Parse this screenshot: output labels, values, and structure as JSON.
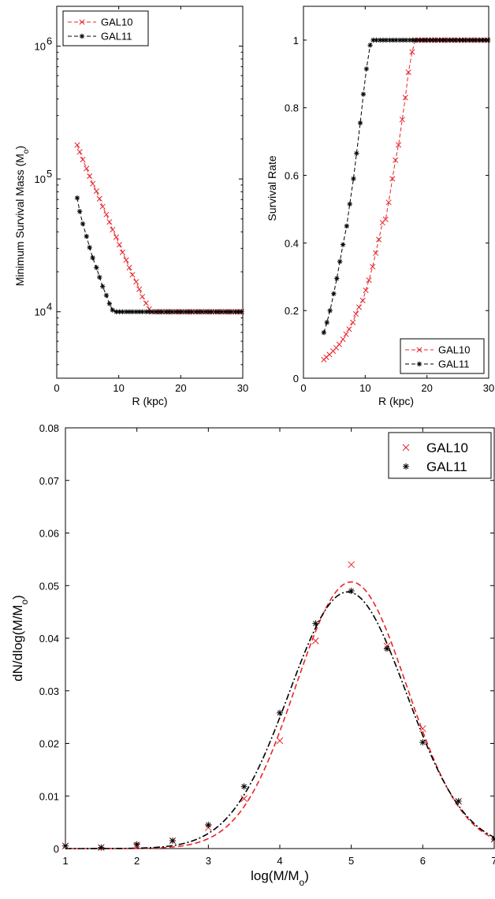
{
  "colors": {
    "red": "#e8242a",
    "black": "#000000"
  },
  "chart_data": [
    {
      "type": "line",
      "xlabel": "R (kpc)",
      "ylabel": "Minimum Survival Mass (M",
      "ylabel_sub": "o",
      "ylabel_close": ")",
      "xlim": [
        0,
        30
      ],
      "ylim_log10": [
        3.5,
        6.3
      ],
      "yscale": "log",
      "xticks": [
        0,
        10,
        20,
        30
      ],
      "xtick_labels": [
        "0",
        "10",
        "20",
        "30"
      ],
      "yticks_log10": [
        4,
        5,
        6
      ],
      "ytick_bases": [
        "10",
        "10",
        "10"
      ],
      "ytick_exps": [
        "4",
        "5",
        "6"
      ],
      "legend": {
        "position": "top-left",
        "entries": [
          "GAL10",
          "GAL11"
        ]
      },
      "series": [
        {
          "name": "GAL10",
          "color": "#e8242a",
          "marker": "x",
          "x": [
            3.3,
            3.7,
            4.2,
            4.8,
            5.3,
            5.8,
            6.4,
            6.9,
            7.4,
            8.0,
            8.5,
            9.0,
            9.6,
            10.1,
            10.6,
            11.2,
            11.7,
            12.2,
            12.8,
            13.3,
            13.8,
            14.4,
            14.9,
            15.4,
            16.0,
            16.5,
            17.0,
            17.6,
            18.1,
            18.6,
            19.2,
            19.7,
            20.2,
            20.8,
            21.3,
            21.8,
            22.4,
            22.9,
            23.4,
            24.0,
            24.5,
            25.0,
            25.6,
            26.1,
            26.6,
            27.2,
            27.7,
            28.2,
            28.8,
            29.3,
            29.8
          ],
          "y": [
            180000,
            160000,
            140000,
            120000,
            105000,
            92000,
            81000,
            71000,
            62000,
            54000,
            47500,
            41500,
            36500,
            32000,
            28000,
            24500,
            21500,
            19000,
            16800,
            14800,
            13000,
            11600,
            10500,
            10000,
            10000,
            10000,
            10000,
            10000,
            10000,
            10000,
            10000,
            10000,
            10000,
            10000,
            10000,
            10000,
            10000,
            10000,
            10000,
            10000,
            10000,
            10000,
            10000,
            10000,
            10000,
            10000,
            10000,
            10000,
            10000,
            10000,
            10000
          ]
        },
        {
          "name": "GAL11",
          "color": "#000000",
          "marker": "*",
          "x": [
            3.3,
            3.7,
            4.2,
            4.8,
            5.3,
            5.8,
            6.4,
            6.9,
            7.4,
            8.0,
            8.5,
            9.0,
            9.6,
            10.1,
            10.6,
            11.2,
            11.7,
            12.2,
            12.8,
            13.3,
            13.8,
            14.4,
            14.9,
            15.4,
            16.0,
            16.5,
            17.0,
            17.6,
            18.1,
            18.6,
            19.2,
            19.7,
            20.2,
            20.8,
            21.3,
            21.8,
            22.4,
            22.9,
            23.4,
            24.0,
            24.5,
            25.0,
            25.6,
            26.1,
            26.6,
            27.2,
            27.7,
            28.2,
            28.8,
            29.3,
            29.8
          ],
          "y": [
            72000,
            57000,
            46000,
            37000,
            30500,
            25500,
            21500,
            18200,
            15500,
            13300,
            11500,
            10300,
            10000,
            10000,
            10000,
            10000,
            10000,
            10000,
            10000,
            10000,
            10000,
            10000,
            10000,
            10000,
            10000,
            10000,
            10000,
            10000,
            10000,
            10000,
            10000,
            10000,
            10000,
            10000,
            10000,
            10000,
            10000,
            10000,
            10000,
            10000,
            10000,
            10000,
            10000,
            10000,
            10000,
            10000,
            10000,
            10000,
            10000,
            10000,
            10000
          ]
        }
      ]
    },
    {
      "type": "line",
      "xlabel": "R (kpc)",
      "ylabel": "Survival Rate",
      "xlim": [
        0,
        30
      ],
      "ylim": [
        0,
        1.1
      ],
      "xticks": [
        0,
        10,
        20,
        30
      ],
      "xtick_labels": [
        "0",
        "10",
        "20",
        "30"
      ],
      "yticks": [
        0,
        0.2,
        0.4,
        0.6,
        0.8,
        1
      ],
      "ytick_labels": [
        "0",
        "0.2",
        "0.4",
        "0.6",
        "0.8",
        "1"
      ],
      "legend": {
        "position": "bottom-right",
        "entries": [
          "GAL10",
          "GAL11"
        ]
      },
      "series": [
        {
          "name": "GAL10",
          "color": "#e8242a",
          "marker": "x",
          "x": [
            3.3,
            3.7,
            4.2,
            4.8,
            5.3,
            5.8,
            6.4,
            6.9,
            7.4,
            8.0,
            8.5,
            9.0,
            9.6,
            10.1,
            10.6,
            11.2,
            11.7,
            12.2,
            12.8,
            13.3,
            13.8,
            14.4,
            14.9,
            15.4,
            16.0,
            16.5,
            17.0,
            17.6,
            18.1,
            18.6,
            19.2,
            19.7,
            20.2,
            20.8,
            21.3,
            21.8,
            22.4,
            22.9,
            23.4,
            24.0,
            24.5,
            25.0,
            25.6,
            26.1,
            26.6,
            27.2,
            27.7,
            28.2,
            28.8,
            29.3,
            29.8
          ],
          "y": [
            0.055,
            0.062,
            0.07,
            0.08,
            0.09,
            0.1,
            0.115,
            0.13,
            0.145,
            0.165,
            0.19,
            0.21,
            0.23,
            0.26,
            0.29,
            0.33,
            0.37,
            0.41,
            0.46,
            0.47,
            0.52,
            0.59,
            0.645,
            0.69,
            0.765,
            0.83,
            0.905,
            0.965,
            1.0,
            1.0,
            1.0,
            1.0,
            1.0,
            1.0,
            1.0,
            1.0,
            1.0,
            1.0,
            1.0,
            1.0,
            1.0,
            1.0,
            1.0,
            1.0,
            1.0,
            1.0,
            1.0,
            1.0,
            1.0,
            1.0,
            1.0
          ]
        },
        {
          "name": "GAL11",
          "color": "#000000",
          "marker": "*",
          "x": [
            3.3,
            3.8,
            4.3,
            4.9,
            5.4,
            5.9,
            6.4,
            7.0,
            7.5,
            8.1,
            8.6,
            9.2,
            9.7,
            10.2,
            10.8,
            11.3,
            11.8,
            12.4,
            12.9,
            13.4,
            14.0,
            14.5,
            15.0,
            15.6,
            16.1,
            16.6,
            17.2,
            17.7,
            18.2,
            18.8,
            19.3,
            19.8,
            20.4,
            20.9,
            21.4,
            22.0,
            22.5,
            23.0,
            23.6,
            24.1,
            24.6,
            25.2,
            25.7,
            26.2,
            26.8,
            27.3,
            27.8,
            28.4,
            28.9,
            29.4,
            29.9
          ],
          "y": [
            0.135,
            0.165,
            0.2,
            0.25,
            0.295,
            0.345,
            0.395,
            0.45,
            0.515,
            0.59,
            0.665,
            0.755,
            0.84,
            0.915,
            0.985,
            1.0,
            1.0,
            1.0,
            1.0,
            1.0,
            1.0,
            1.0,
            1.0,
            1.0,
            1.0,
            1.0,
            1.0,
            1.0,
            1.0,
            1.0,
            1.0,
            1.0,
            1.0,
            1.0,
            1.0,
            1.0,
            1.0,
            1.0,
            1.0,
            1.0,
            1.0,
            1.0,
            1.0,
            1.0,
            1.0,
            1.0,
            1.0,
            1.0,
            1.0,
            1.0,
            1.0
          ]
        }
      ]
    },
    {
      "type": "scatter",
      "xlabel": "log(M/M",
      "xlabel_sub": "o",
      "xlabel_close": ")",
      "ylabel": "dN/dlog(M/M",
      "ylabel_sub": "o",
      "ylabel_close": ")",
      "xlim": [
        1,
        7
      ],
      "ylim": [
        0,
        0.08
      ],
      "xticks": [
        1,
        2,
        3,
        4,
        5,
        6,
        7
      ],
      "xtick_labels": [
        "1",
        "2",
        "3",
        "4",
        "5",
        "6",
        "7"
      ],
      "yticks": [
        0,
        0.01,
        0.02,
        0.03,
        0.04,
        0.05,
        0.06,
        0.07,
        0.08
      ],
      "ytick_labels": [
        "0",
        "0.01",
        "0.02",
        "0.03",
        "0.04",
        "0.05",
        "0.06",
        "0.07",
        "0.08"
      ],
      "legend": {
        "position": "top-right",
        "entries": [
          "GAL10",
          "GAL11"
        ]
      },
      "series": [
        {
          "name": "GAL10",
          "color": "#e8242a",
          "marker": "x",
          "x": [
            1.0,
            1.5,
            2.0,
            2.5,
            3.0,
            3.5,
            4.0,
            4.5,
            5.0,
            5.5,
            6.0,
            6.5,
            7.0
          ],
          "y": [
            0.0005,
            0.0002,
            0.0005,
            0.0015,
            0.004,
            0.0095,
            0.0205,
            0.0395,
            0.054,
            0.0385,
            0.0228,
            0.009,
            0.0018
          ],
          "fit": {
            "mean": 5.0,
            "sigma": 0.78,
            "peak": 0.0507
          }
        },
        {
          "name": "GAL11",
          "color": "#000000",
          "marker": "*",
          "x": [
            1.0,
            1.5,
            2.0,
            2.5,
            3.0,
            3.5,
            4.0,
            4.5,
            5.0,
            5.5,
            6.0,
            6.5,
            7.0
          ],
          "y": [
            0.0005,
            0.0002,
            0.0008,
            0.0015,
            0.0045,
            0.0118,
            0.0258,
            0.0428,
            0.049,
            0.038,
            0.0202,
            0.009,
            0.0018
          ],
          "fit": {
            "mean": 4.95,
            "sigma": 0.82,
            "peak": 0.0488
          }
        }
      ]
    }
  ]
}
